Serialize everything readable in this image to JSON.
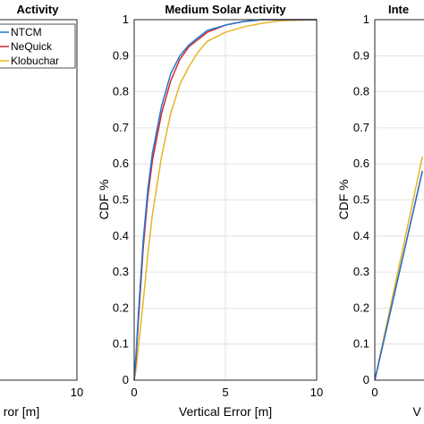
{
  "chart_data": [
    {
      "type": "line",
      "title": "Activity",
      "xlabel": "ror [m]",
      "ylabel": "",
      "visible_xticks": [
        "10"
      ],
      "grid": true,
      "series": [
        {
          "name": "NTCM",
          "color": "#1f77d4"
        },
        {
          "name": "NeQuick",
          "color": "#d62728"
        },
        {
          "name": "Klobuchar",
          "color": "#e6b422"
        }
      ],
      "legend": "top-left"
    },
    {
      "type": "line",
      "title": "Medium Solar Activity",
      "xlabel": "Vertical Error [m]",
      "ylabel": "CDF %",
      "xlim": [
        0,
        10
      ],
      "ylim": [
        0,
        1
      ],
      "xticks": [
        "0",
        "5",
        "10"
      ],
      "yticks": [
        "0",
        "0.1",
        "0.2",
        "0.3",
        "0.4",
        "0.5",
        "0.6",
        "0.7",
        "0.8",
        "0.9",
        "1"
      ],
      "grid": true,
      "series": [
        {
          "name": "NTCM",
          "color": "#1f77d4",
          "x": [
            0,
            0.1,
            0.25,
            0.5,
            0.75,
            1,
            1.5,
            2,
            2.5,
            3,
            3.5,
            4,
            5,
            6,
            7,
            8,
            10
          ],
          "y": [
            0,
            0.07,
            0.2,
            0.39,
            0.53,
            0.63,
            0.76,
            0.85,
            0.9,
            0.93,
            0.95,
            0.97,
            0.985,
            0.995,
            1,
            1,
            1
          ]
        },
        {
          "name": "NeQuick",
          "color": "#d62728",
          "x": [
            0,
            0.1,
            0.25,
            0.5,
            0.75,
            1,
            1.5,
            2,
            2.5,
            3,
            3.5,
            4,
            5,
            6,
            7,
            8,
            10
          ],
          "y": [
            0,
            0.06,
            0.18,
            0.37,
            0.51,
            0.61,
            0.74,
            0.83,
            0.89,
            0.925,
            0.945,
            0.965,
            0.985,
            0.995,
            1,
            1,
            1
          ]
        },
        {
          "name": "Klobuchar",
          "color": "#e6b422",
          "x": [
            0,
            0.1,
            0.25,
            0.5,
            0.75,
            1,
            1.5,
            2,
            2.5,
            3,
            3.5,
            4,
            5,
            6,
            7,
            8,
            10
          ],
          "y": [
            0,
            0.03,
            0.1,
            0.22,
            0.35,
            0.46,
            0.62,
            0.74,
            0.82,
            0.87,
            0.91,
            0.94,
            0.965,
            0.98,
            0.99,
            0.997,
            1
          ]
        }
      ]
    },
    {
      "type": "line",
      "title": "Inte",
      "xlabel": "V",
      "ylabel": "CDF %",
      "ylim": [
        0,
        1
      ],
      "xticks": [
        "0"
      ],
      "yticks": [
        "0",
        "0.1",
        "0.2",
        "0.3",
        "0.4",
        "0.5",
        "0.6",
        "0.7",
        "0.8",
        "0.9",
        "1"
      ],
      "grid": true,
      "series": [
        {
          "name": "NTCM",
          "color": "#1f77d4",
          "x": [
            0,
            0.14
          ],
          "y": [
            0,
            0.58
          ]
        },
        {
          "name": "NeQuick",
          "color": "#d62728",
          "x": [
            0,
            0.14
          ],
          "y": [
            0,
            0.58
          ]
        },
        {
          "name": "Klobuchar",
          "color": "#e6b422",
          "x": [
            0,
            0.14
          ],
          "y": [
            0,
            0.62
          ]
        }
      ]
    }
  ]
}
